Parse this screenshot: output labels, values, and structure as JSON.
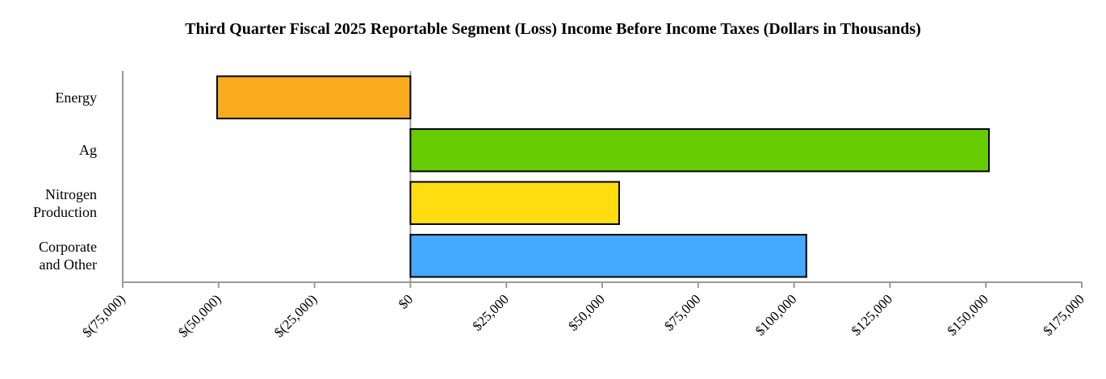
{
  "chart_data": {
    "type": "hbar",
    "title": "Third Quarter Fiscal 2025 Reportable Segment (Loss) Income Before Income Taxes (Dollars in Thousands)",
    "categories": [
      "Energy",
      "Ag",
      "Nitrogen Production",
      "Corporate and Other"
    ],
    "values": [
      -50400,
      150800,
      54400,
      103200
    ],
    "colors": [
      "#f8ab1c",
      "#66cc00",
      "#ffdd11",
      "#44aaff"
    ],
    "xlim": [
      -75000,
      175000
    ],
    "xticks": [
      {
        "value": -75000,
        "label": "$(75,000)"
      },
      {
        "value": -50000,
        "label": "$(50,000)"
      },
      {
        "value": -25000,
        "label": "$(25,000)"
      },
      {
        "value": 0,
        "label": "$0"
      },
      {
        "value": 25000,
        "label": "$25,000"
      },
      {
        "value": 50000,
        "label": "$50,000"
      },
      {
        "value": 75000,
        "label": "$75,000"
      },
      {
        "value": 100000,
        "label": "$100,000"
      },
      {
        "value": 125000,
        "label": "$125,000"
      },
      {
        "value": 150000,
        "label": "$150,000"
      },
      {
        "value": 175000,
        "label": "$175,000"
      }
    ],
    "grid": false
  }
}
